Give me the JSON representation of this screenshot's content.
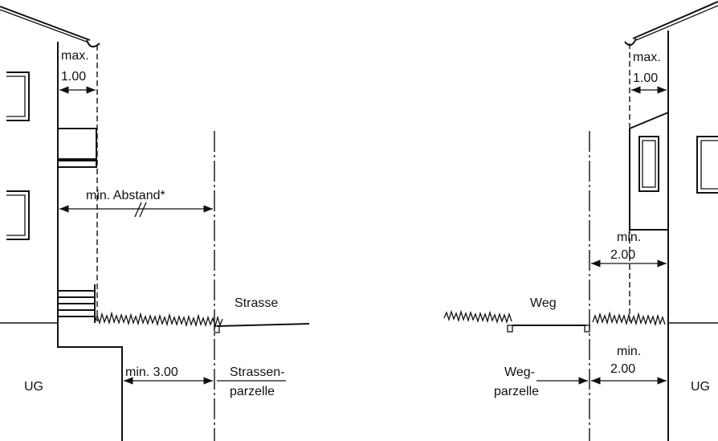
{
  "left": {
    "overhang_max": "max.",
    "overhang_value": "1.00",
    "setback_label": "min. Abstand*",
    "road_label": "Strasse",
    "parcel_line1": "Strassen-",
    "parcel_line2": "parzelle",
    "basement_distance": "min. 3.00",
    "basement_label": "UG"
  },
  "right": {
    "overhang_max": "max.",
    "overhang_value": "1.00",
    "min_upper_label": "min.",
    "min_upper_value": "2.00",
    "path_label": "Weg",
    "min_lower_label": "min.",
    "min_lower_value": "2.00",
    "parcel_line1": "Weg-",
    "parcel_line2": "parzelle",
    "basement_label": "UG"
  }
}
